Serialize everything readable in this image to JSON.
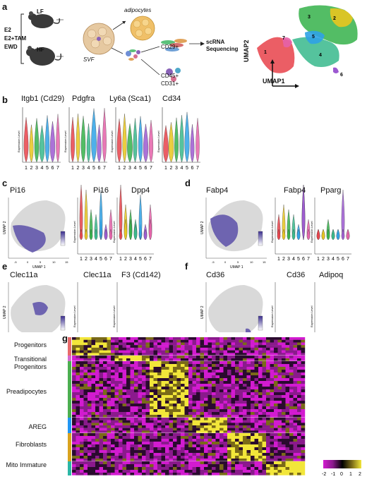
{
  "panel_labels": [
    "a",
    "b",
    "c",
    "d",
    "e",
    "f",
    "g"
  ],
  "panel_a": {
    "conditions": [
      "E2",
      "E2+TAM",
      "EWD"
    ],
    "diets": [
      "LF",
      "HF"
    ],
    "adipocytes_label": "adipocytes",
    "svf_label": "SVF",
    "cd29_label": "CD29+",
    "cd45_label": "CD45+",
    "cd31_label": "CD31+",
    "scrna_label": "scRNA Sequencing",
    "umap_x": "UMAP1",
    "umap_y": "UMAP2",
    "clusters": [
      "1",
      "2",
      "3",
      "4",
      "5",
      "6",
      "7"
    ],
    "cluster_colors": [
      "#e8424a",
      "#e8c51f",
      "#35b24a",
      "#37b88c",
      "#2fa2e6",
      "#9c59d1",
      "#e562a9"
    ]
  },
  "panel_b": {
    "genes": [
      "Itgb1 (Cd29)",
      "Pdgfra",
      "Ly6a (Sca1)",
      "Cd34"
    ],
    "ylabel": "Expression Level",
    "xticks": [
      "1",
      "2",
      "3",
      "4",
      "5",
      "6",
      "7"
    ]
  },
  "panel_c": {
    "umap_gene": "Pi16",
    "violin_genes": [
      "Pi16",
      "Dpp4"
    ]
  },
  "panel_d": {
    "umap_gene": "Fabp4",
    "violin_genes": [
      "Fabp4",
      "Pparg"
    ]
  },
  "panel_e": {
    "umap_gene": "Clec11a",
    "violin_genes": [
      "Clec11a",
      "F3 (Cd142)"
    ]
  },
  "panel_f": {
    "umap_gene": "Cd36",
    "violin_genes": [
      "Cd36",
      "Adipoq"
    ]
  },
  "umap_axes": {
    "x": "UMAP 1",
    "y": "UMAP 2",
    "xticks": [
      "-5",
      "0",
      "5",
      "10",
      "15"
    ]
  },
  "panel_g": {
    "groups": [
      {
        "label": "Progenitors",
        "color": "#e86a6a"
      },
      {
        "label": "Transitional Progenitors",
        "color": "#d46ad0"
      },
      {
        "label": "Preadipocytes",
        "color": "#4caf50"
      },
      {
        "label": "AREG",
        "color": "#2196f3"
      },
      {
        "label": "Fibroblasts",
        "color": "#d9a31e"
      },
      {
        "label": "Mito Immature",
        "color": "#2bb7a6"
      }
    ],
    "colorbar_ticks": [
      "-2",
      "-1",
      "0",
      "1",
      "2"
    ]
  }
}
